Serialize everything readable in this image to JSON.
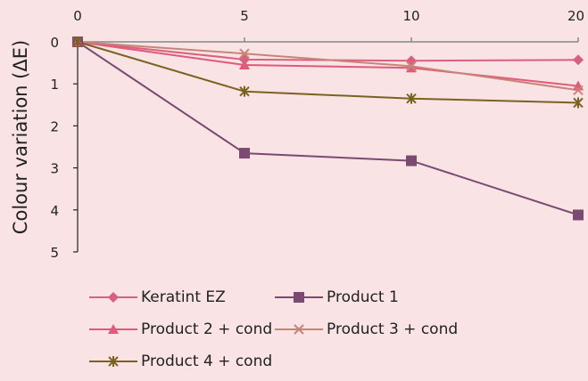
{
  "chart_data": {
    "type": "line",
    "title": "",
    "xlabel": "",
    "ylabel": "Colour variation (ΔE)",
    "x": [
      0,
      5,
      10,
      20
    ],
    "x_positions_note": "",
    "xticks": [
      "0",
      "5",
      "10",
      "20"
    ],
    "yticks": [
      "0",
      "1",
      "2",
      "3",
      "4",
      "5"
    ],
    "ylim": [
      0,
      5
    ],
    "y_inverted": true,
    "grid": false,
    "legend_position": "bottom",
    "series": [
      {
        "name": "Keratint EZ",
        "values": [
          0,
          0.42,
          0.45,
          0.43
        ],
        "color": "#d9607f",
        "marker": "diamond"
      },
      {
        "name": "Product 1",
        "values": [
          0,
          2.65,
          2.83,
          4.12
        ],
        "color": "#7a4a70",
        "marker": "square"
      },
      {
        "name": "Product 2 + cond",
        "values": [
          0,
          0.55,
          0.62,
          1.05
        ],
        "color": "#e05a7a",
        "marker": "triangle"
      },
      {
        "name": "Product 3 + cond",
        "values": [
          0,
          0.28,
          0.58,
          1.15
        ],
        "color": "#c98478",
        "marker": "x"
      },
      {
        "name": "Product 4 + cond",
        "values": [
          0,
          1.18,
          1.35,
          1.45
        ],
        "color": "#7a6220",
        "marker": "star"
      }
    ]
  }
}
